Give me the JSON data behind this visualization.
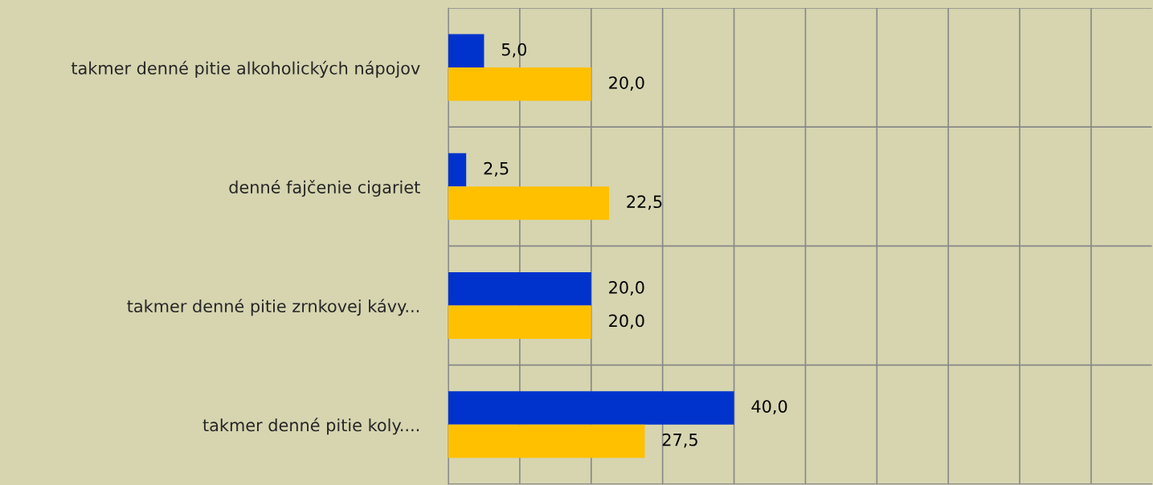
{
  "chart_data": {
    "type": "bar",
    "orientation": "horizontal",
    "categories": [
      "takmer denné pitie alkoholických nápojov",
      "denné fajčenie cigariet",
      "takmer denné pitie zrnkovej kávy...",
      "takmer denné pitie koly...."
    ],
    "series": [
      {
        "color": "#0033cc",
        "values": [
          5.0,
          2.5,
          20.0,
          40.0
        ],
        "value_labels": [
          "5,0",
          "2,5",
          "20,0",
          "40,0"
        ]
      },
      {
        "color": "#ffc000",
        "values": [
          20.0,
          22.5,
          20.0,
          27.5
        ],
        "value_labels": [
          "20,0",
          "22,5",
          "20,0",
          "27,5"
        ]
      }
    ],
    "xlim": [
      0,
      98.5
    ],
    "xticks": [
      {
        "value": 0,
        "label": null
      },
      {
        "value": 10,
        "label": null
      },
      {
        "value": 20,
        "label": null
      },
      {
        "value": 30,
        "label": null
      },
      {
        "value": 40,
        "label": null
      },
      {
        "value": 50,
        "label": null
      },
      {
        "value": 60,
        "label": null
      },
      {
        "value": 70,
        "label": null
      },
      {
        "value": 80,
        "label": null
      },
      {
        "value": 90,
        "label": null
      }
    ],
    "tick_labels": "y",
    "grid": true,
    "legend": false
  }
}
